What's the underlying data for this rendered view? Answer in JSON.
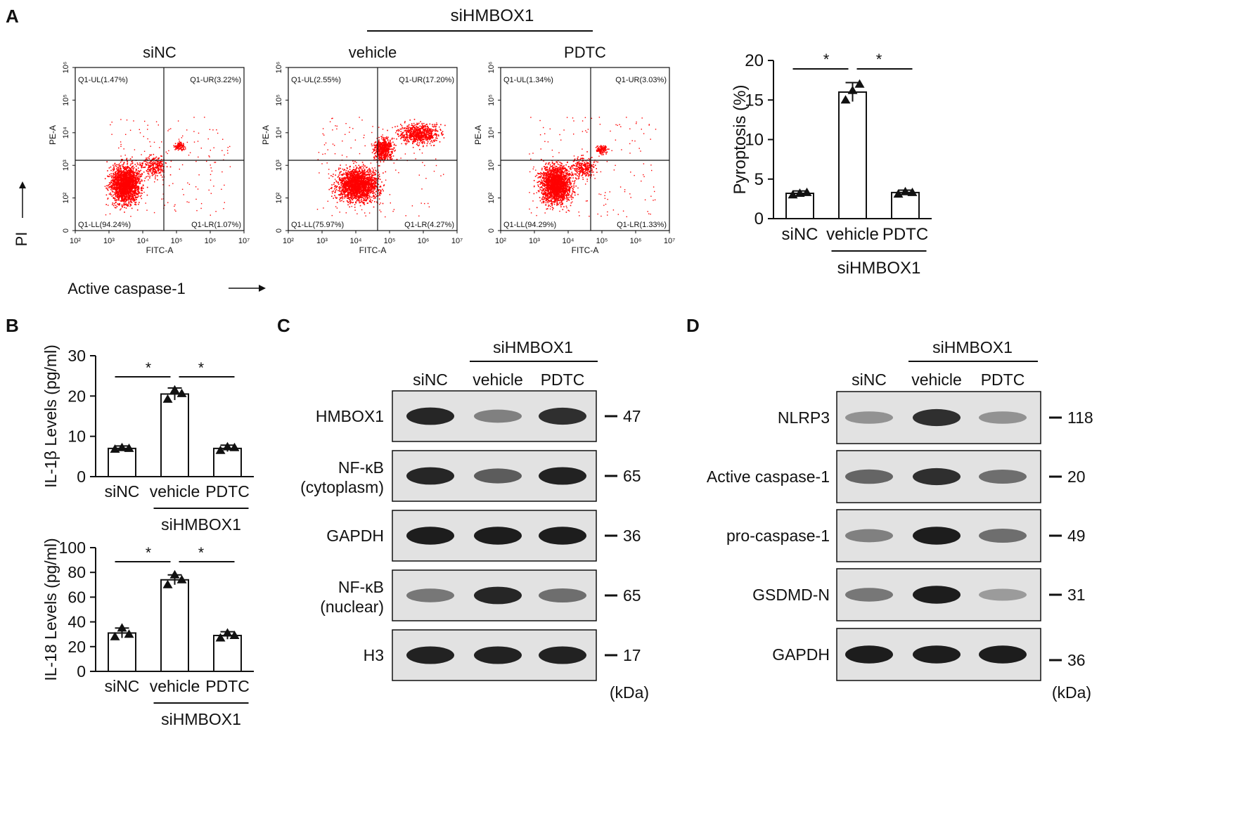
{
  "panels": {
    "A": "A",
    "B": "B",
    "C": "C",
    "D": "D"
  },
  "group_label": "siHMBOX1",
  "flow": {
    "y_axis_label": "PI",
    "x_axis_label": "Active caspase-1",
    "x_channel": "FITC-A",
    "y_channel": "PE-A",
    "x_ticks": [
      "10²",
      "10³",
      "10⁴",
      "10⁵",
      "10⁶",
      "10⁷"
    ],
    "y_ticks": [
      "0",
      "10²",
      "10³",
      "10⁴",
      "10⁵",
      "10⁶"
    ],
    "plots": [
      {
        "title": "siNC",
        "UL": "Q1-UL(1.47%)",
        "UR": "Q1-UR(3.22%)",
        "LL": "Q1-LL(94.24%)",
        "LR": "Q1-LR(1.07%)",
        "color": "#ff0000"
      },
      {
        "title": "vehicle",
        "UL": "Q1-UL(2.55%)",
        "UR": "Q1-UR(17.20%)",
        "LL": "Q1-LL(75.97%)",
        "LR": "Q1-LR(4.27%)",
        "color": "#ff0000"
      },
      {
        "title": "PDTC",
        "UL": "Q1-UL(1.34%)",
        "UR": "Q1-UR(3.03%)",
        "LL": "Q1-LL(94.29%)",
        "LR": "Q1-LR(1.33%)",
        "color": "#ff0000"
      }
    ]
  },
  "chart_data": [
    {
      "type": "bar",
      "categories": [
        "siNC",
        "vehicle",
        "PDTC"
      ],
      "values": [
        3.2,
        16.0,
        3.3
      ],
      "errors": [
        0.3,
        1.2,
        0.3
      ],
      "points": [
        [
          3.0,
          3.2,
          3.3
        ],
        [
          15.0,
          16.2,
          17.0
        ],
        [
          3.1,
          3.4,
          3.3
        ]
      ],
      "ylabel": "Pyroptosis (%)",
      "ylim": [
        0,
        20
      ],
      "yticks": [
        "0",
        "5",
        "10",
        "15",
        "20"
      ],
      "significance": [
        "*",
        "*"
      ],
      "group_label": "siHMBOX1"
    },
    {
      "type": "bar",
      "categories": [
        "siNC",
        "vehicle",
        "PDTC"
      ],
      "values": [
        7.0,
        20.5,
        7.0
      ],
      "errors": [
        0.6,
        1.5,
        0.8
      ],
      "points": [
        [
          6.8,
          7.2,
          7.0
        ],
        [
          19.2,
          21.5,
          20.6
        ],
        [
          6.5,
          7.4,
          7.2
        ]
      ],
      "ylabel": "IL-1β Levels (pg/ml)",
      "ylim": [
        0,
        30
      ],
      "yticks": [
        "0",
        "10",
        "20",
        "30"
      ],
      "significance": [
        "*",
        "*"
      ],
      "group_label": "siHMBOX1"
    },
    {
      "type": "bar",
      "categories": [
        "siNC",
        "vehicle",
        "PDTC"
      ],
      "values": [
        31,
        74,
        29
      ],
      "errors": [
        4,
        4,
        3
      ],
      "points": [
        [
          28,
          35,
          30
        ],
        [
          70,
          78,
          74
        ],
        [
          27,
          31,
          29
        ]
      ],
      "ylabel": "IL-18 Levels (pg/ml)",
      "ylim": [
        0,
        100
      ],
      "yticks": [
        "0",
        "20",
        "40",
        "60",
        "80",
        "100"
      ],
      "significance": [
        "*",
        "*"
      ],
      "group_label": "siHMBOX1"
    }
  ],
  "blot_C": {
    "lanes": [
      "siNC",
      "vehicle",
      "PDTC"
    ],
    "group_label": "siHMBOX1",
    "unit": "(kDa)",
    "rows": [
      {
        "label": "HMBOX1",
        "label2": "",
        "kda": "47",
        "intensity": [
          0.9,
          0.4,
          0.85
        ]
      },
      {
        "label": "NF-κB",
        "label2": "(cytoplasm)",
        "kda": "65",
        "intensity": [
          0.9,
          0.6,
          0.92
        ]
      },
      {
        "label": "GAPDH",
        "label2": "",
        "kda": "36",
        "intensity": [
          0.95,
          0.95,
          0.95
        ]
      },
      {
        "label": "NF-κB",
        "label2": "(nuclear)",
        "kda": "65",
        "intensity": [
          0.45,
          0.9,
          0.5
        ]
      },
      {
        "label": "H3",
        "label2": "",
        "kda": "17",
        "intensity": [
          0.92,
          0.92,
          0.92
        ]
      }
    ]
  },
  "blot_D": {
    "lanes": [
      "siNC",
      "vehicle",
      "PDTC"
    ],
    "group_label": "siHMBOX1",
    "unit": "(kDa)",
    "rows": [
      {
        "label": "NLRP3",
        "kda": "118",
        "intensity": [
          0.3,
          0.85,
          0.3
        ]
      },
      {
        "label": "Active caspase-1",
        "kda": "20",
        "intensity": [
          0.55,
          0.85,
          0.5
        ]
      },
      {
        "label": "pro-caspase-1",
        "kda": "49",
        "intensity": [
          0.4,
          0.95,
          0.5
        ]
      },
      {
        "label": "GSDMD-N",
        "kda": "31",
        "intensity": [
          0.45,
          0.95,
          0.25
        ]
      },
      {
        "label": "GAPDH",
        "kda": "36",
        "intensity": [
          0.95,
          0.95,
          0.95
        ]
      }
    ]
  }
}
